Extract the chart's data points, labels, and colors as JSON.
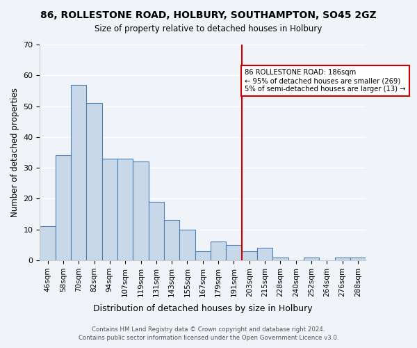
{
  "title": "86, ROLLESTONE ROAD, HOLBURY, SOUTHAMPTON, SO45 2GZ",
  "subtitle": "Size of property relative to detached houses in Holbury",
  "xlabel": "Distribution of detached houses by size in Holbury",
  "ylabel": "Number of detached properties",
  "bar_labels": [
    "46sqm",
    "58sqm",
    "70sqm",
    "82sqm",
    "94sqm",
    "107sqm",
    "119sqm",
    "131sqm",
    "143sqm",
    "155sqm",
    "167sqm",
    "179sqm",
    "191sqm",
    "203sqm",
    "215sqm",
    "228sqm",
    "240sqm",
    "252sqm",
    "264sqm",
    "276sqm",
    "288sqm"
  ],
  "bar_values": [
    11,
    34,
    57,
    51,
    33,
    33,
    32,
    19,
    13,
    10,
    3,
    6,
    5,
    3,
    4,
    1,
    0,
    1,
    0,
    1,
    1
  ],
  "bar_color": "#c8d8e8",
  "bar_edge_color": "#4a7fb5",
  "ylim": [
    0,
    70
  ],
  "yticks": [
    0,
    10,
    20,
    30,
    40,
    50,
    60,
    70
  ],
  "property_line_x": 12.5,
  "property_line_color": "#cc0000",
  "annotation_text": "86 ROLLESTONE ROAD: 186sqm\n← 95% of detached houses are smaller (269)\n5% of semi-detached houses are larger (13) →",
  "annotation_box_color": "#ffffff",
  "annotation_box_edge": "#cc0000",
  "footer_line1": "Contains HM Land Registry data © Crown copyright and database right 2024.",
  "footer_line2": "Contains public sector information licensed under the Open Government Licence v3.0.",
  "background_color": "#f0f4f8"
}
